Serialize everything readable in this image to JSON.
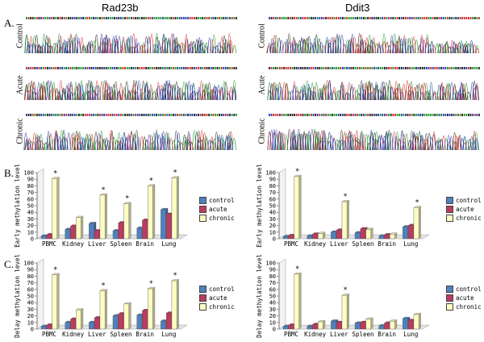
{
  "headers": {
    "left": "Rad23b",
    "right": "Ddit3"
  },
  "panels": {
    "a": "A.",
    "b": "B.",
    "c": "C."
  },
  "traces": {
    "rows": [
      "Control",
      "Acute",
      "Chronic"
    ]
  },
  "colors": {
    "control": "#4f81bd",
    "acute": "#c0395e",
    "chronic": "#fdfcc4",
    "trace_a": "#1e9b2c",
    "trace_c": "#2a3fb5",
    "trace_g": "#222222",
    "trace_t": "#d32d2d"
  },
  "chart_data": [
    {
      "id": "B-left",
      "type": "bar",
      "gene": "Rad23b",
      "categories": [
        "PBMC",
        "Kidney",
        "Liver",
        "Spleen",
        "Brain",
        "Lung"
      ],
      "series": [
        {
          "name": "control",
          "values": [
            4,
            14,
            23,
            12,
            16,
            44
          ]
        },
        {
          "name": "acute",
          "values": [
            6,
            19,
            12,
            24,
            28,
            37
          ]
        },
        {
          "name": "chronic",
          "values": [
            91,
            32,
            66,
            53,
            80,
            92
          ]
        }
      ],
      "ylabel": "Early methylation level",
      "ylim": [
        0,
        100
      ],
      "yticks": [
        0,
        10,
        20,
        30,
        40,
        50,
        60,
        70,
        80,
        90,
        100
      ],
      "significant": [
        true,
        false,
        true,
        true,
        true,
        true
      ],
      "annotation": "*",
      "legend": "right"
    },
    {
      "id": "B-right",
      "type": "bar",
      "gene": "Ddit3",
      "categories": [
        "PBMC",
        "Kidney",
        "Liver",
        "Spleen",
        "Brain",
        "Lung"
      ],
      "series": [
        {
          "name": "control",
          "values": [
            3,
            4,
            10,
            9,
            4,
            18
          ]
        },
        {
          "name": "acute",
          "values": [
            5,
            7,
            13,
            15,
            6,
            20
          ]
        },
        {
          "name": "chronic",
          "values": [
            94,
            8,
            56,
            14,
            7,
            47
          ]
        }
      ],
      "ylabel": "Early methylation level",
      "ylim": [
        0,
        100
      ],
      "yticks": [
        0,
        10,
        20,
        30,
        40,
        50,
        60,
        70,
        80,
        90,
        100
      ],
      "significant": [
        true,
        false,
        true,
        false,
        false,
        true
      ],
      "annotation": "*",
      "legend": "right"
    },
    {
      "id": "C-left",
      "type": "bar",
      "gene": "Rad23b",
      "categories": [
        "PBMC",
        "Kidney",
        "Liver",
        "Spleen",
        "Brain",
        "Lung"
      ],
      "series": [
        {
          "name": "control",
          "values": [
            4,
            10,
            10,
            20,
            21,
            12
          ]
        },
        {
          "name": "acute",
          "values": [
            6,
            15,
            17,
            23,
            28,
            24
          ]
        },
        {
          "name": "chronic",
          "values": [
            82,
            29,
            58,
            38,
            61,
            73
          ]
        }
      ],
      "ylabel": "Delay methylation level",
      "ylim": [
        0,
        100
      ],
      "yticks": [
        0,
        10,
        20,
        30,
        40,
        50,
        60,
        70,
        80,
        90,
        100
      ],
      "significant": [
        true,
        false,
        true,
        false,
        true,
        true
      ],
      "annotation": "*",
      "legend": "right"
    },
    {
      "id": "C-right",
      "type": "bar",
      "gene": "Ddit3",
      "categories": [
        "PBMC",
        "Kidney",
        "Liver",
        "Spleen",
        "Brain",
        "Lung"
      ],
      "series": [
        {
          "name": "control",
          "values": [
            4,
            4,
            12,
            9,
            5,
            16
          ]
        },
        {
          "name": "acute",
          "values": [
            6,
            7,
            10,
            10,
            9,
            13
          ]
        },
        {
          "name": "chronic",
          "values": [
            83,
            11,
            51,
            15,
            12,
            22
          ]
        }
      ],
      "ylabel": "Delay methylation level",
      "ylim": [
        0,
        100
      ],
      "yticks": [
        0,
        10,
        20,
        30,
        40,
        50,
        60,
        70,
        80,
        90,
        100
      ],
      "significant": [
        true,
        false,
        true,
        false,
        false,
        false
      ],
      "annotation": "*",
      "legend": "right"
    }
  ]
}
